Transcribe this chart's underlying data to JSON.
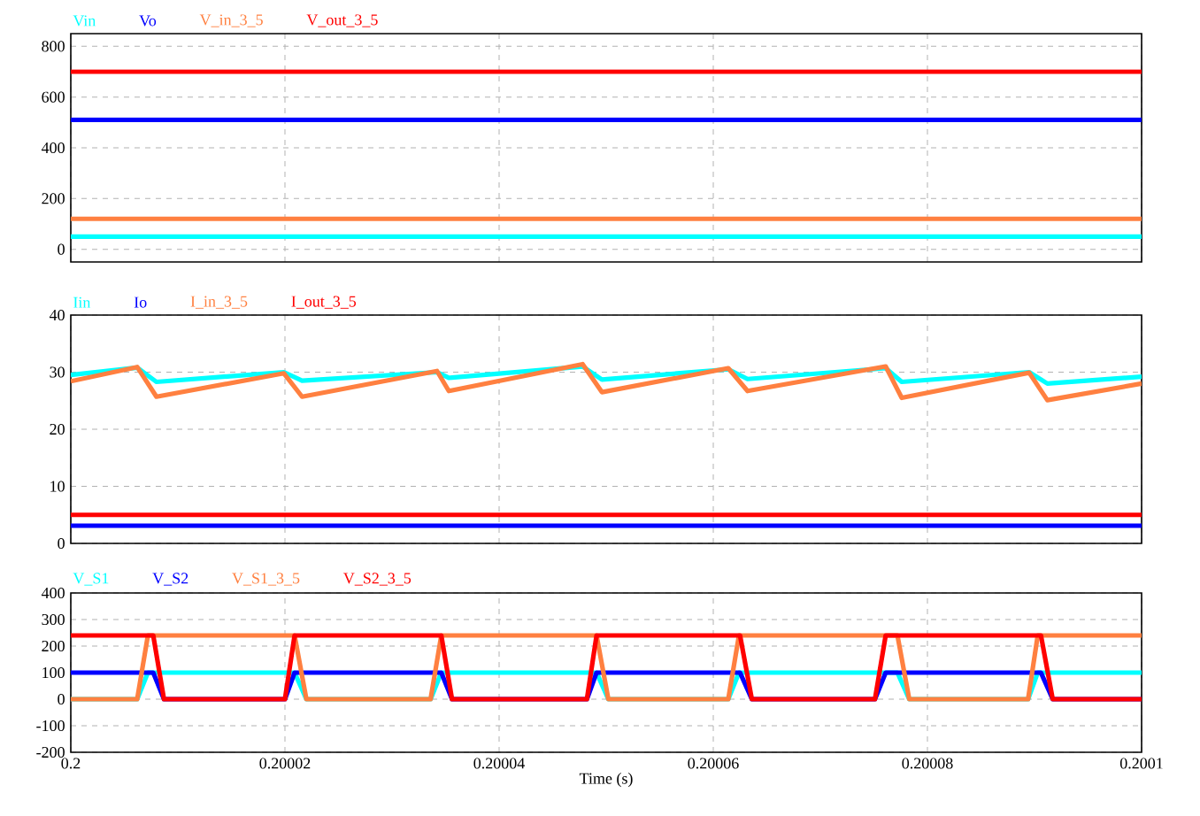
{
  "chart_data": [
    {
      "type": "line",
      "xlim": [
        0.2,
        0.2001
      ],
      "xticks": [
        0.2,
        0.20002,
        0.20004,
        0.20006,
        0.20008,
        0.2001
      ],
      "ylim": [
        -50,
        850
      ],
      "yticks": [
        0,
        200,
        400,
        600,
        800
      ],
      "grid": true,
      "legend": "top left",
      "tick_labels": "y",
      "line_style": "solid",
      "series": [
        {
          "name": "Vin",
          "color": "#00ffff",
          "x": [
            0.2,
            0.2001
          ],
          "values": [
            50,
            50
          ]
        },
        {
          "name": "Vo",
          "color": "#0000ff",
          "x": [
            0.2,
            0.2001
          ],
          "values": [
            510,
            510
          ]
        },
        {
          "name": "V_in_3_5",
          "color": "#ff8040",
          "x": [
            0.2,
            0.2001
          ],
          "values": [
            120,
            120
          ]
        },
        {
          "name": "V_out_3_5",
          "color": "#ff0000",
          "x": [
            0.2,
            0.2001
          ],
          "values": [
            700,
            700
          ]
        }
      ]
    },
    {
      "type": "line",
      "xlim": [
        0.2,
        0.2001
      ],
      "xticks": [
        0.2,
        0.20002,
        0.20004,
        0.20006,
        0.20008,
        0.2001
      ],
      "ylim": [
        0,
        40
      ],
      "yticks": [
        0,
        10,
        20,
        30,
        40
      ],
      "grid": true,
      "legend": "top left",
      "tick_labels": "y",
      "line_style": "solid",
      "series": [
        {
          "name": "Iin",
          "color": "#00ffff",
          "x": [
            0.2,
            0.2000062,
            0.200008,
            0.2000199,
            0.2000216,
            0.2000342,
            0.2000353,
            0.2000478,
            0.2000496,
            0.2000614,
            0.2000632,
            0.2000761,
            0.2000776,
            0.2000895,
            0.2000912,
            0.2001
          ],
          "values": [
            29.5,
            30.8,
            28.3,
            30.0,
            28.5,
            30.0,
            29.0,
            31.0,
            28.7,
            30.5,
            28.8,
            30.7,
            28.3,
            30.0,
            28.0,
            29.2
          ]
        },
        {
          "name": "Io",
          "color": "#0000ff",
          "x": [
            0.2,
            0.2001
          ],
          "values": [
            3.1,
            3.1
          ]
        },
        {
          "name": "I_in_3_5",
          "color": "#ff8040",
          "x": [
            0.2,
            0.2000062,
            0.200008,
            0.2000199,
            0.2000216,
            0.2000342,
            0.2000353,
            0.2000478,
            0.2000496,
            0.2000614,
            0.2000632,
            0.2000761,
            0.2000776,
            0.2000895,
            0.2000912,
            0.2001
          ],
          "values": [
            28.4,
            30.9,
            25.7,
            29.8,
            25.7,
            30.2,
            26.7,
            31.4,
            26.5,
            30.7,
            26.7,
            31.0,
            25.5,
            29.9,
            25.1,
            28.0
          ]
        },
        {
          "name": "I_out_3_5",
          "color": "#ff0000",
          "x": [
            0.2,
            0.2001
          ],
          "values": [
            5.0,
            5.0
          ]
        }
      ]
    },
    {
      "type": "line",
      "xlim": [
        0.2,
        0.2001
      ],
      "xticks": [
        0.2,
        0.20002,
        0.20004,
        0.20006,
        0.20008,
        0.2001
      ],
      "ylim": [
        -200,
        400
      ],
      "yticks": [
        -200,
        -100,
        0,
        100,
        200,
        300,
        400
      ],
      "grid": true,
      "legend": "top left",
      "line_style": "solid",
      "xlabel": "Time (s)",
      "series": [
        {
          "name": "V_S1",
          "color": "#00ffff",
          "x": [
            0.2,
            0.2000062,
            0.2000072,
            0.2000209,
            0.200022,
            0.2000336,
            0.2000346,
            0.2000491,
            0.2000502,
            0.2000614,
            0.2000624,
            0.2000772,
            0.2000783,
            0.2000894,
            0.2000903,
            0.2001
          ],
          "values": [
            0,
            0,
            100,
            100,
            0,
            0,
            100,
            100,
            0,
            0,
            100,
            100,
            0,
            0,
            100,
            100
          ]
        },
        {
          "name": "V_S2",
          "color": "#0000ff",
          "x": [
            0.2,
            0.2000077,
            0.2000087,
            0.20002,
            0.2000209,
            0.2000346,
            0.2000356,
            0.2000482,
            0.2000491,
            0.2000625,
            0.2000636,
            0.2000751,
            0.2000761,
            0.2000906,
            0.2000917,
            0.2001
          ],
          "values": [
            100,
            100,
            0,
            0,
            100,
            100,
            0,
            0,
            100,
            100,
            0,
            0,
            100,
            100,
            0,
            0
          ]
        },
        {
          "name": "V_S1_3_5",
          "color": "#ff8040",
          "x": [
            0.2,
            0.2000062,
            0.2000072,
            0.2000209,
            0.200022,
            0.2000336,
            0.2000346,
            0.2000491,
            0.2000502,
            0.2000614,
            0.2000624,
            0.2000772,
            0.2000783,
            0.2000894,
            0.2000903,
            0.2001
          ],
          "values": [
            0,
            0,
            240,
            240,
            0,
            0,
            240,
            240,
            0,
            0,
            240,
            240,
            0,
            0,
            240,
            240
          ]
        },
        {
          "name": "V_S2_3_5",
          "color": "#ff0000",
          "x": [
            0.2,
            0.2000077,
            0.2000087,
            0.20002,
            0.2000209,
            0.2000346,
            0.2000356,
            0.2000482,
            0.2000491,
            0.2000625,
            0.2000636,
            0.2000751,
            0.2000761,
            0.2000906,
            0.2000917,
            0.2001
          ],
          "values": [
            240,
            240,
            0,
            0,
            240,
            240,
            0,
            0,
            240,
            240,
            0,
            0,
            240,
            240,
            0,
            0
          ]
        }
      ]
    }
  ]
}
